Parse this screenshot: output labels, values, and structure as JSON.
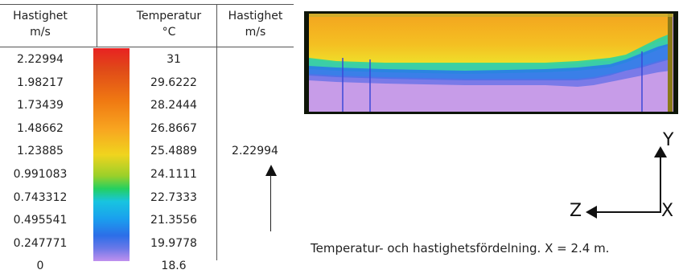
{
  "legend": {
    "header_speed": [
      "Hastighet",
      "m/s"
    ],
    "header_temp": [
      "Temperatur",
      "°C"
    ],
    "header_speed2": [
      "Hastighet",
      "m/s"
    ],
    "speed_values": [
      "2.22994",
      "1.98217",
      "1.73439",
      "1.48662",
      "1.23885",
      "0.991083",
      "0.743312",
      "0.495541",
      "0.247771",
      "0"
    ],
    "temp_values": [
      "31",
      "29.6222",
      "28.2444",
      "26.8667",
      "25.4889",
      "24.1111",
      "22.7333",
      "21.3556",
      "19.9778",
      "18.6"
    ],
    "vector_reference": "2.22994"
  },
  "axes": {
    "y": "Y",
    "z": "Z",
    "x": "X"
  },
  "caption": "Temperatur- och hastighetsfördelning. X = 2.4 m."
}
